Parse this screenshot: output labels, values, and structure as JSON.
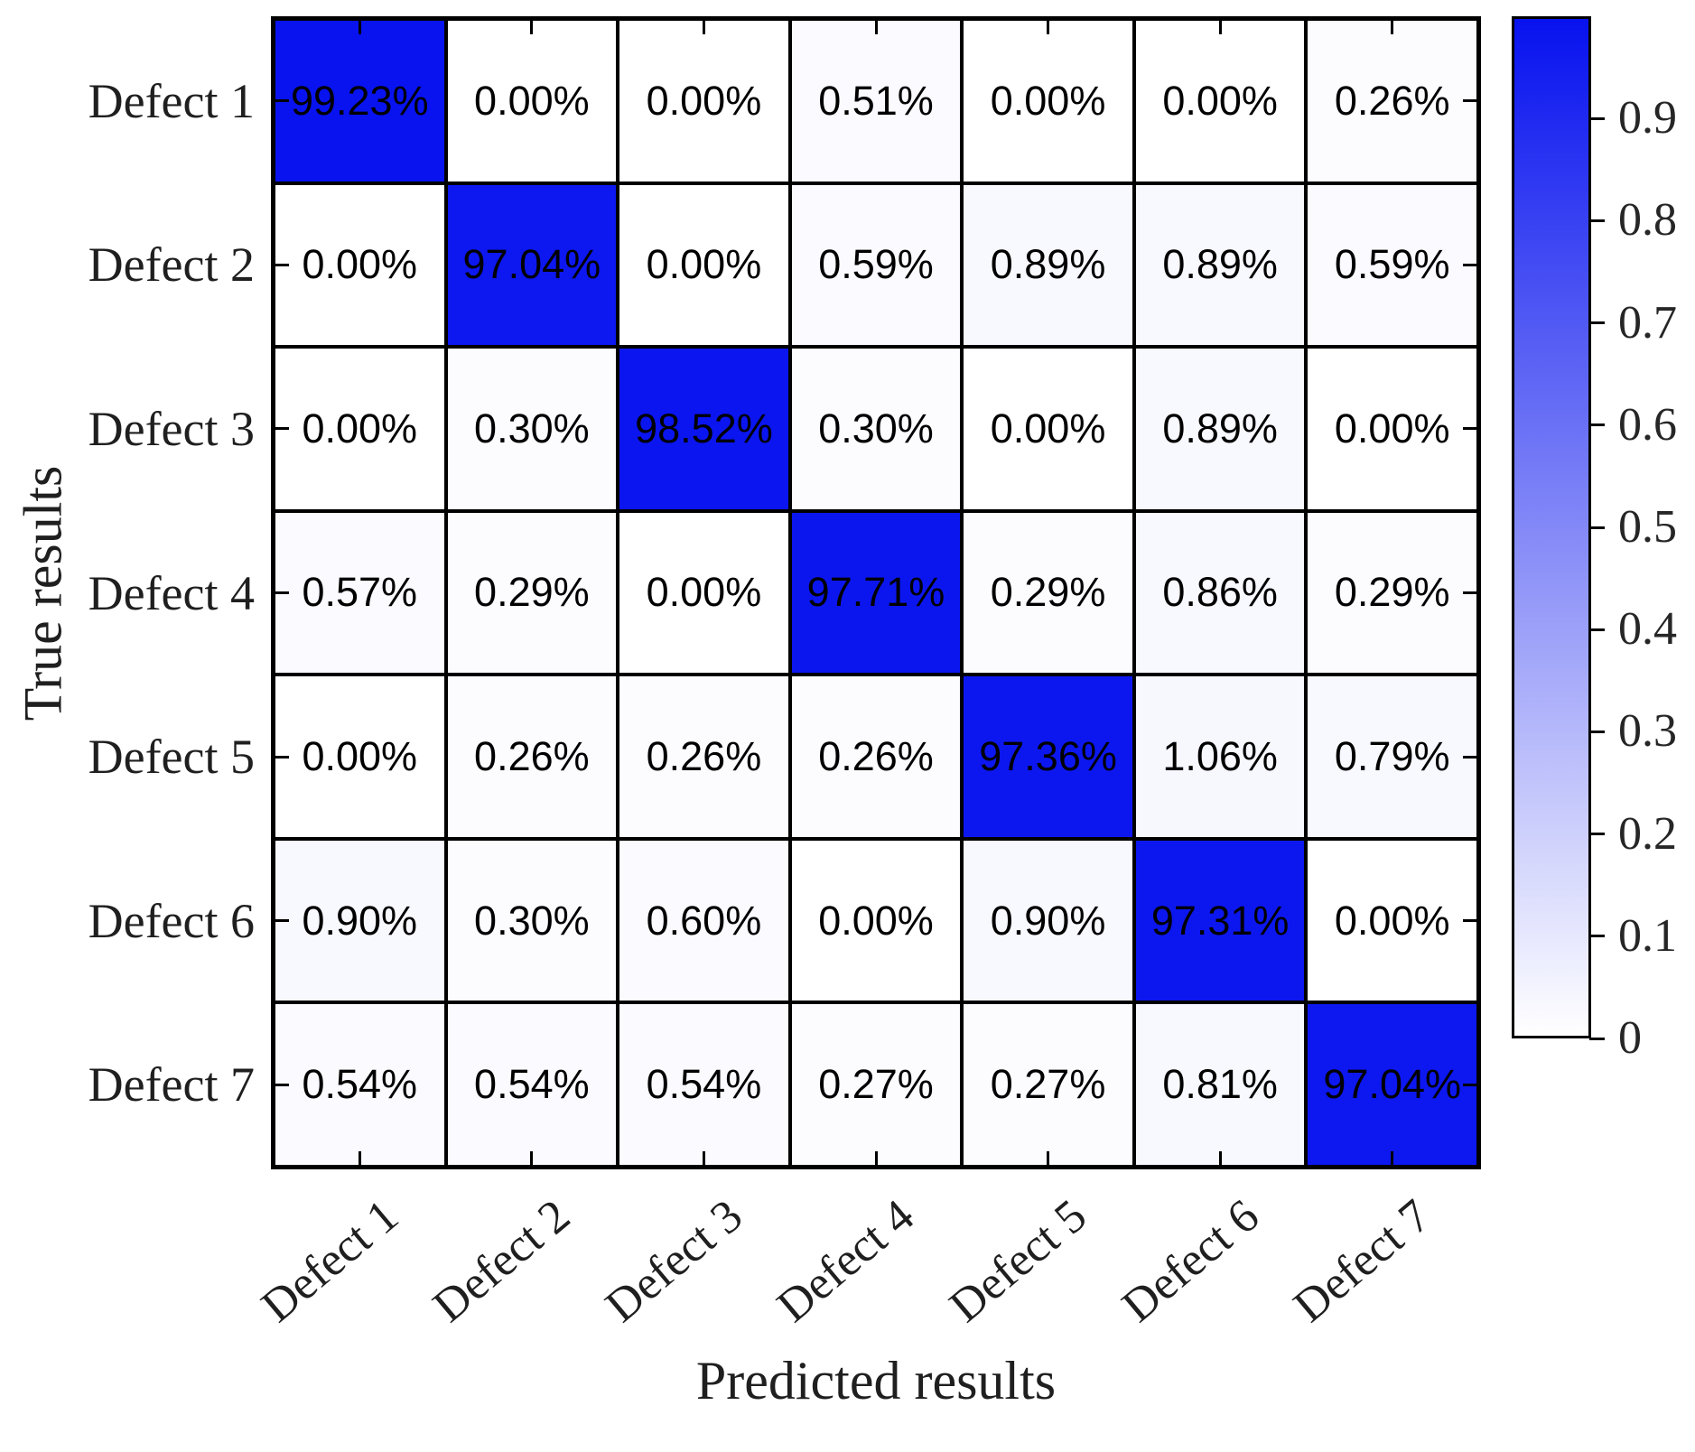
{
  "chart_data": {
    "type": "heatmap",
    "title": "",
    "xlabel": "Predicted results",
    "ylabel": "True results",
    "col_labels": [
      "Defect 1",
      "Defect 2",
      "Defect 3",
      "Defect 4",
      "Defect 5",
      "Defect 6",
      "Defect 7"
    ],
    "row_labels": [
      "Defect 1",
      "Defect 2",
      "Defect 3",
      "Defect 4",
      "Defect 5",
      "Defect 6",
      "Defect 7"
    ],
    "value_suffix": "%",
    "values_percent": [
      [
        99.23,
        0.0,
        0.0,
        0.51,
        0.0,
        0.0,
        0.26
      ],
      [
        0.0,
        97.04,
        0.0,
        0.59,
        0.89,
        0.89,
        0.59
      ],
      [
        0.0,
        0.3,
        98.52,
        0.3,
        0.0,
        0.89,
        0.0
      ],
      [
        0.57,
        0.29,
        0.0,
        97.71,
        0.29,
        0.86,
        0.29
      ],
      [
        0.0,
        0.26,
        0.26,
        0.26,
        97.36,
        1.06,
        0.79
      ],
      [
        0.9,
        0.3,
        0.6,
        0.0,
        0.9,
        97.31,
        0.0
      ],
      [
        0.54,
        0.54,
        0.54,
        0.27,
        0.27,
        0.81,
        97.04
      ]
    ],
    "colorbar": {
      "min": 0,
      "max": 1,
      "tick_labels": [
        "0.9",
        "0.8",
        "0.7",
        "0.6",
        "0.5",
        "0.4",
        "0.3",
        "0.2",
        "0.1",
        "0"
      ],
      "tick_values": [
        0.9,
        0.8,
        0.7,
        0.6,
        0.5,
        0.4,
        0.3,
        0.2,
        0.1,
        0
      ],
      "color_high": "#0712ef",
      "color_low": "#ffffff"
    },
    "colors": {
      "grid_line": "#000000",
      "cell_text": "#000000",
      "axis_text": "#1f1f1f"
    },
    "layout": {
      "legend": "colorbar-right",
      "grid": "on",
      "x_tick_rotation_deg": -40
    }
  }
}
